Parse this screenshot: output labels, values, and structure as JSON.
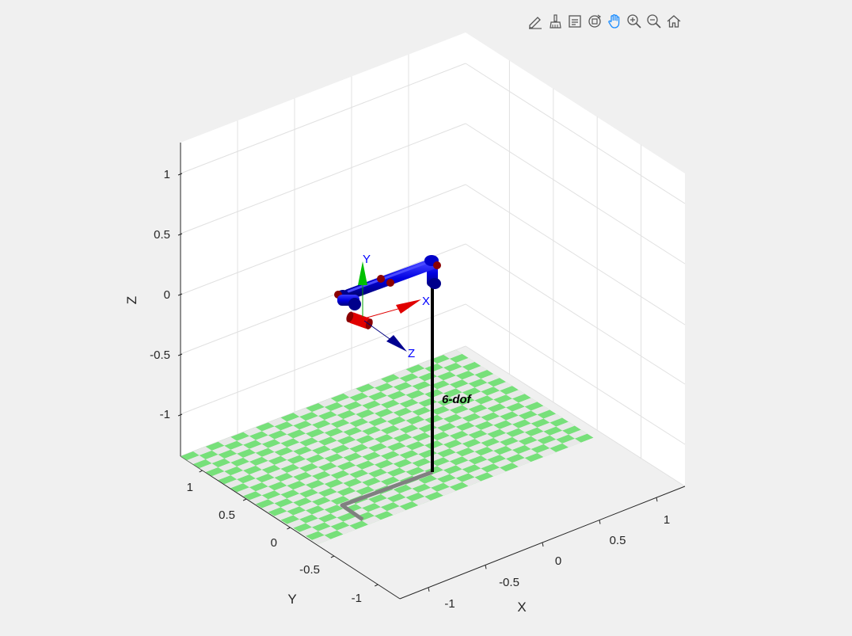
{
  "toolbar": {
    "buttons": [
      {
        "icon": "edit-plot-icon"
      },
      {
        "icon": "brush-icon"
      },
      {
        "icon": "data-tips-icon"
      },
      {
        "icon": "rotate-3d-icon"
      },
      {
        "icon": "pan-hand-icon",
        "active": true
      },
      {
        "icon": "zoom-in-icon"
      },
      {
        "icon": "zoom-out-icon"
      },
      {
        "icon": "home-icon"
      }
    ]
  },
  "axes": {
    "xlabel": "X",
    "ylabel": "Y",
    "zlabel": "Z",
    "x_ticks": [
      "-1",
      "-0.5",
      "0",
      "0.5",
      "1"
    ],
    "y_ticks": [
      "-1",
      "-0.5",
      "0",
      "0.5",
      "1"
    ],
    "z_ticks": [
      "1",
      "0.5",
      "0",
      "-0.5",
      "-1"
    ],
    "grid": true
  },
  "robot": {
    "name": "6-dof",
    "frame_labels": {
      "x": "X",
      "y": "Y",
      "z": "Z"
    },
    "link_color": "#0000e6",
    "joint_color": "#8b0000",
    "pedestal_color": "#000000",
    "shadow_color": "#808080"
  },
  "floor": {
    "color_a": "#77e07a",
    "color_b": "#e8e8e8"
  }
}
